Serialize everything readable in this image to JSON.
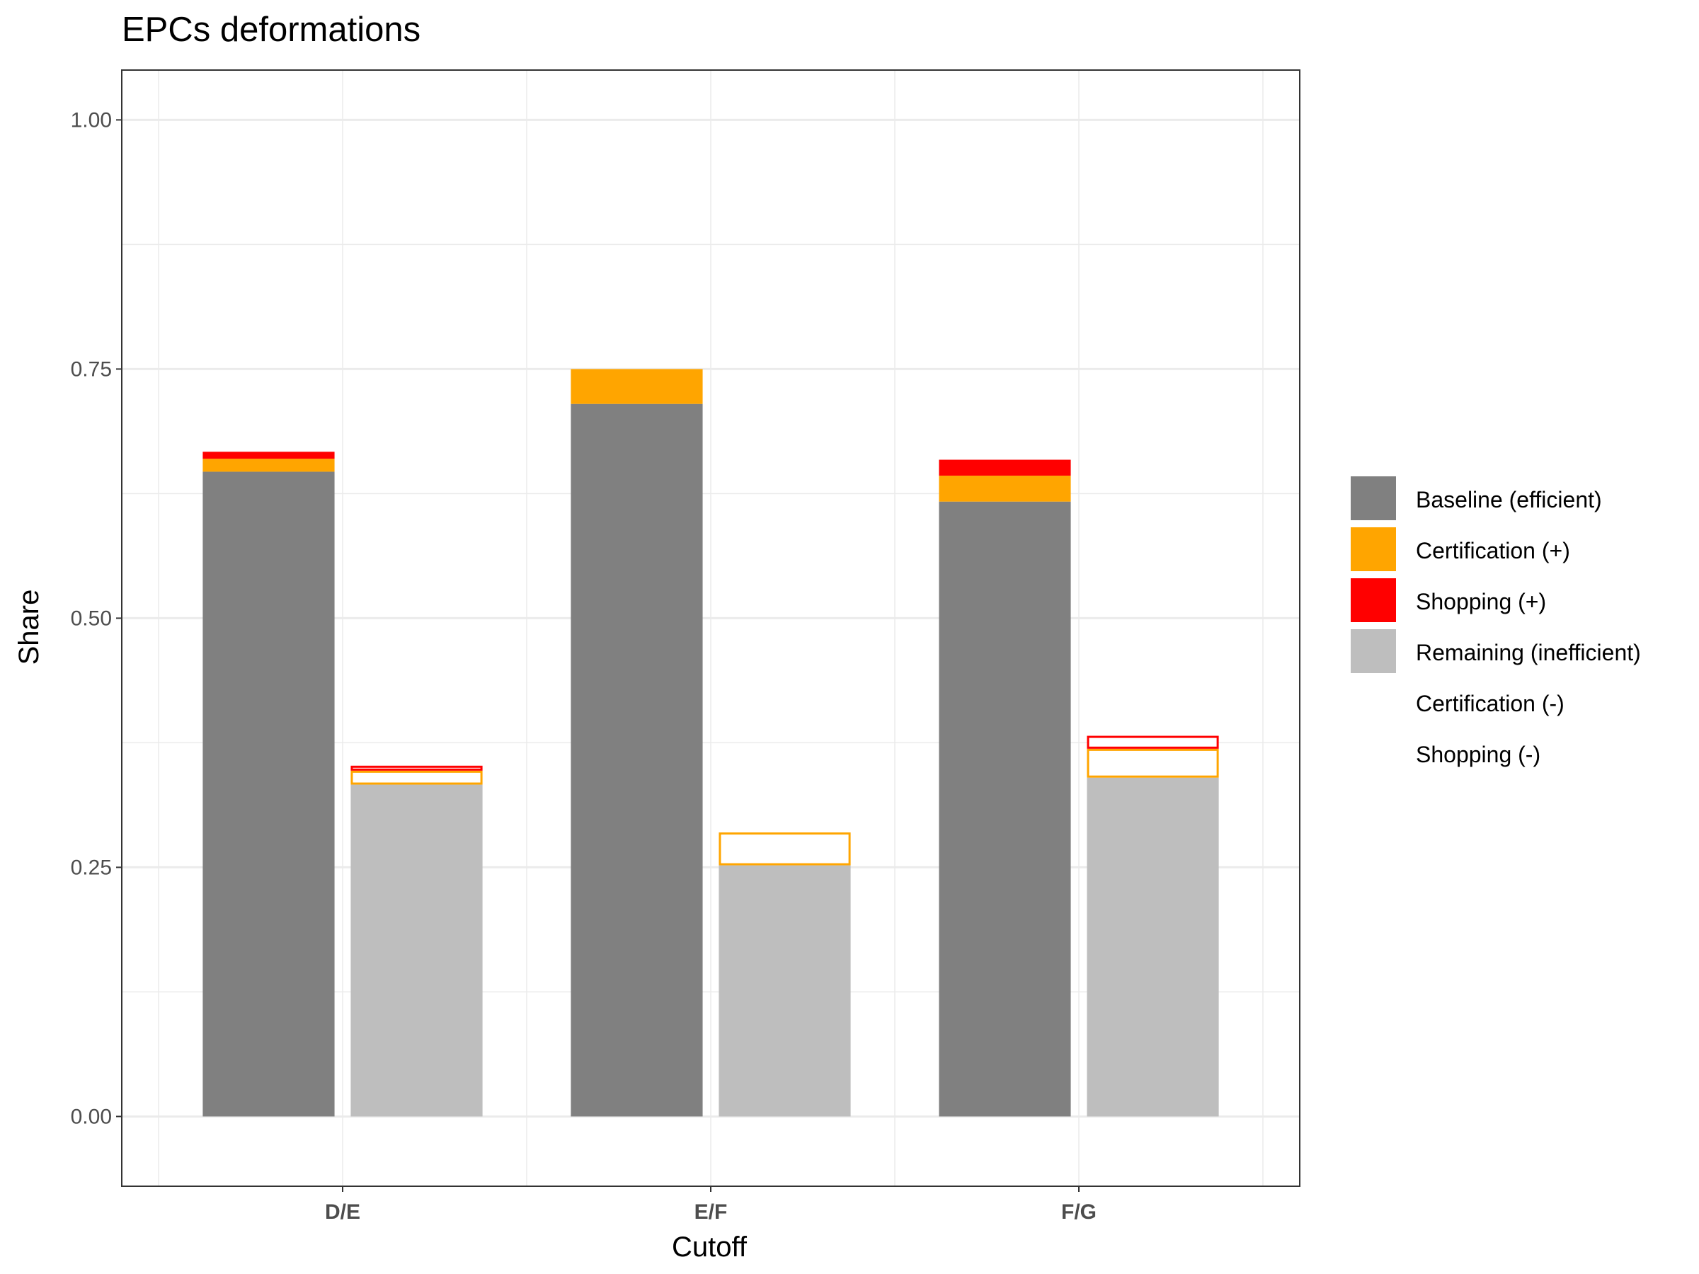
{
  "chart_data": {
    "type": "bar",
    "title": "EPCs deformations",
    "xlabel": "Cutoff",
    "ylabel": "Share",
    "ylim": [
      -0.07,
      1.05
    ],
    "yticks": [
      0.0,
      0.25,
      0.5,
      0.75,
      1.0
    ],
    "ytick_labels": [
      "0.00",
      "0.25",
      "0.50",
      "0.75",
      "1.00"
    ],
    "categories": [
      "D/E",
      "E/F",
      "F/G"
    ],
    "grid": true,
    "legend_position": "right",
    "efficient_bars": [
      {
        "cutoff": "D/E",
        "baseline": 0.647,
        "certification_plus": 0.013,
        "shopping_plus": 0.007
      },
      {
        "cutoff": "E/F",
        "baseline": 0.715,
        "certification_plus": 0.035,
        "shopping_plus": 0.0
      },
      {
        "cutoff": "F/G",
        "baseline": 0.617,
        "certification_plus": 0.026,
        "shopping_plus": 0.016
      }
    ],
    "inefficient_bars": [
      {
        "cutoff": "D/E",
        "remaining": 0.333,
        "certification_minus": 0.014,
        "shopping_minus": 0.005
      },
      {
        "cutoff": "E/F",
        "remaining": 0.252,
        "certification_minus": 0.033,
        "shopping_minus": 0.0
      },
      {
        "cutoff": "F/G",
        "remaining": 0.34,
        "certification_minus": 0.029,
        "shopping_minus": 0.013
      }
    ],
    "legend": [
      {
        "label": "Baseline (efficient)",
        "key": "baseline",
        "fill": "#808080",
        "stroke": "none"
      },
      {
        "label": "Certification (+)",
        "key": "certification_plus",
        "fill": "#FFA500",
        "stroke": "none"
      },
      {
        "label": "Shopping (+)",
        "key": "shopping_plus",
        "fill": "#FF0000",
        "stroke": "none"
      },
      {
        "label": "Remaining (inefficient)",
        "key": "remaining",
        "fill": "#BEBEBE",
        "stroke": "none"
      },
      {
        "label": "Certification (-)",
        "key": "certification_minus",
        "fill": "#FFFFFF",
        "stroke": "#FFA500"
      },
      {
        "label": "Shopping (-)",
        "key": "shopping_minus",
        "fill": "#FFFFFF",
        "stroke": "#FF0000"
      }
    ]
  }
}
